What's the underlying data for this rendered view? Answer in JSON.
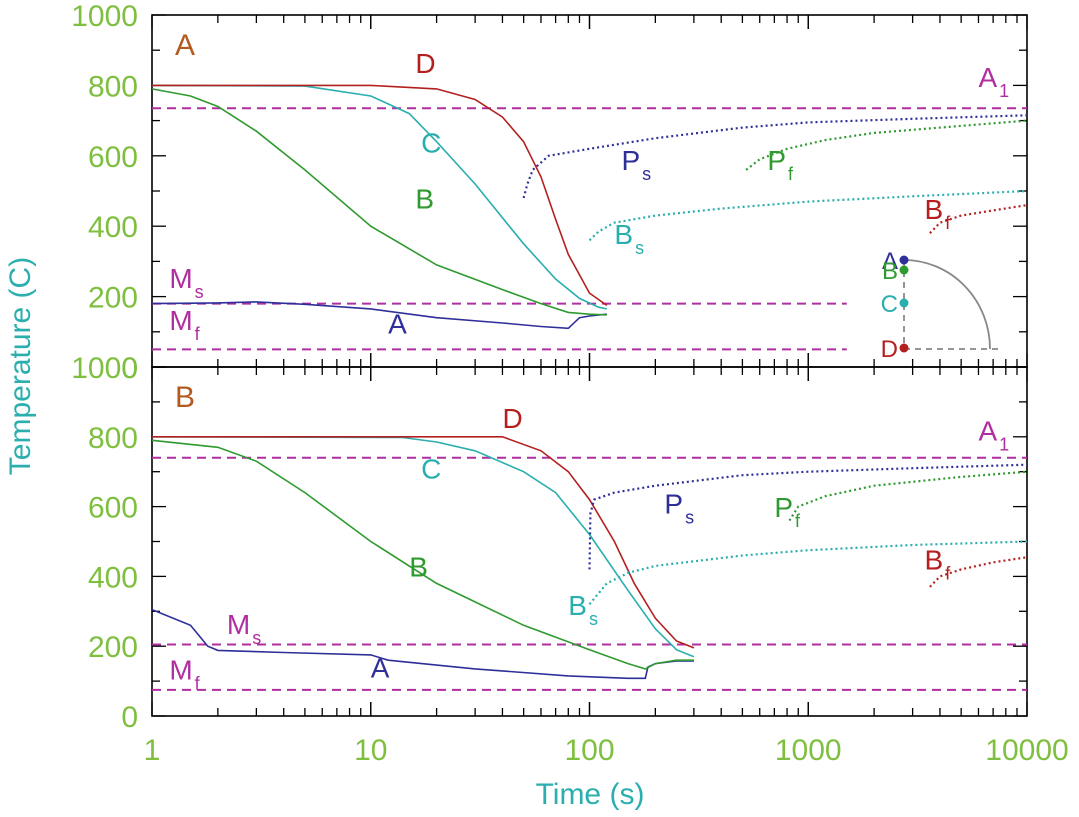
{
  "chart_data": [
    {
      "type": "line",
      "panel_label": "A",
      "xscale": "log",
      "xlim": [
        1,
        10000
      ],
      "ylim": [
        0,
        1000
      ],
      "xticks": [
        "1",
        "10",
        "100",
        "1000",
        "10000"
      ],
      "yticks": [
        "0",
        "200",
        "400",
        "600",
        "800",
        "1000"
      ],
      "xlabel": "Time (s)",
      "ylabel": "Temperature (C)",
      "colors": {
        "A": "#2f2f9a",
        "B": "#2f9a2f",
        "C": "#2aaeae",
        "D": "#b42020",
        "ref": "#b02ea0",
        "panel": "#b25a20",
        "axis_text": "#7fbf3f",
        "title_text": "#2aaeae"
      },
      "series": [
        {
          "name": "A",
          "x": [
            1,
            2,
            3,
            5,
            10,
            20,
            40,
            60,
            80,
            90,
            100,
            120
          ],
          "y": [
            180,
            182,
            185,
            178,
            165,
            140,
            125,
            115,
            110,
            140,
            145,
            150
          ]
        },
        {
          "name": "B",
          "x": [
            1,
            1.5,
            2,
            3,
            5,
            10,
            20,
            40,
            60,
            80,
            100,
            120
          ],
          "y": [
            790,
            770,
            740,
            670,
            560,
            400,
            290,
            220,
            180,
            155,
            150,
            148
          ]
        },
        {
          "name": "C",
          "x": [
            1,
            5,
            10,
            15,
            20,
            30,
            50,
            70,
            90,
            110,
            120
          ],
          "y": [
            800,
            798,
            770,
            720,
            640,
            520,
            350,
            250,
            195,
            170,
            165
          ]
        },
        {
          "name": "D",
          "x": [
            1,
            10,
            20,
            30,
            40,
            50,
            60,
            70,
            80,
            100,
            120
          ],
          "y": [
            800,
            800,
            790,
            760,
            710,
            640,
            540,
            420,
            320,
            210,
            175
          ]
        },
        {
          "name": "Ps",
          "x": [
            50,
            52,
            55,
            65,
            100,
            200,
            500,
            1000,
            3000,
            10000
          ],
          "y": [
            480,
            520,
            560,
            600,
            620,
            650,
            680,
            695,
            705,
            715
          ]
        },
        {
          "name": "Pf",
          "x": [
            520,
            600,
            800,
            1200,
            2000,
            5000,
            10000
          ],
          "y": [
            560,
            590,
            620,
            645,
            665,
            685,
            700
          ]
        },
        {
          "name": "Bs",
          "x": [
            100,
            110,
            130,
            200,
            400,
            1000,
            3000,
            10000
          ],
          "y": [
            360,
            385,
            410,
            430,
            450,
            470,
            485,
            500
          ]
        },
        {
          "name": "Bf",
          "x": [
            3600,
            4000,
            5000,
            7000,
            10000
          ],
          "y": [
            380,
            410,
            430,
            445,
            460
          ]
        }
      ],
      "reference_lines": [
        {
          "name": "A1",
          "y": 735,
          "x_end": 10000
        },
        {
          "name": "Ms",
          "y": 180,
          "x_end": 1500
        },
        {
          "name": "Mf",
          "y": 50,
          "x_end": 1500
        }
      ],
      "curve_labels": [
        {
          "text": "A",
          "x": 12,
          "y": 95,
          "color": "A"
        },
        {
          "text": "B",
          "x": 16,
          "y": 450,
          "color": "B"
        },
        {
          "text": "C",
          "x": 17,
          "y": 610,
          "color": "C"
        },
        {
          "text": "D",
          "x": 16,
          "y": 835,
          "color": "D"
        },
        {
          "text": "P",
          "sub": "s",
          "x": 140,
          "y": 560,
          "color": "A"
        },
        {
          "text": "P",
          "sub": "f",
          "x": 650,
          "y": 560,
          "color": "B"
        },
        {
          "text": "B",
          "sub": "s",
          "x": 130,
          "y": 350,
          "color": "C"
        },
        {
          "text": "B",
          "sub": "f",
          "x": 3400,
          "y": 420,
          "color": "D"
        },
        {
          "text": "M",
          "sub": "s",
          "x": 1.2,
          "y": 225,
          "color": "ref"
        },
        {
          "text": "M",
          "sub": "f",
          "x": 1.2,
          "y": 105,
          "color": "ref"
        },
        {
          "text": "A",
          "sub": "1",
          "x": 6000,
          "y": 795,
          "color": "ref"
        }
      ],
      "inset": {
        "labels": [
          "A",
          "B",
          "C",
          "D"
        ]
      }
    },
    {
      "type": "line",
      "panel_label": "B",
      "xscale": "log",
      "xlim": [
        1,
        10000
      ],
      "ylim": [
        0,
        1000
      ],
      "xticks": [
        "1",
        "10",
        "100",
        "1000",
        "10000"
      ],
      "yticks": [
        "0",
        "200",
        "400",
        "600",
        "800",
        "1000"
      ],
      "series": [
        {
          "name": "A",
          "x": [
            1,
            1.5,
            1.8,
            2,
            4,
            10,
            12,
            30,
            80,
            150,
            180,
            185,
            200,
            250,
            300
          ],
          "y": [
            305,
            260,
            200,
            188,
            182,
            175,
            160,
            135,
            115,
            108,
            108,
            140,
            150,
            158,
            158
          ]
        },
        {
          "name": "B",
          "x": [
            1,
            2,
            3,
            5,
            10,
            20,
            50,
            100,
            150,
            180,
            200,
            250,
            300
          ],
          "y": [
            790,
            770,
            730,
            640,
            500,
            380,
            260,
            190,
            150,
            135,
            150,
            160,
            160
          ]
        },
        {
          "name": "C",
          "x": [
            1,
            14,
            20,
            30,
            50,
            70,
            100,
            150,
            200,
            250,
            300
          ],
          "y": [
            800,
            798,
            785,
            760,
            700,
            640,
            520,
            360,
            250,
            190,
            170
          ]
        },
        {
          "name": "D",
          "x": [
            1,
            40,
            60,
            80,
            100,
            130,
            160,
            200,
            250,
            300
          ],
          "y": [
            800,
            800,
            760,
            700,
            620,
            500,
            380,
            280,
            215,
            195
          ]
        },
        {
          "name": "Ps",
          "x": [
            100,
            101,
            105,
            130,
            200,
            500,
            1000,
            3000,
            10000
          ],
          "y": [
            420,
            580,
            620,
            640,
            660,
            690,
            700,
            710,
            720
          ]
        },
        {
          "name": "Pf",
          "x": [
            820,
            900,
            1200,
            2000,
            5000,
            10000
          ],
          "y": [
            560,
            600,
            630,
            660,
            685,
            700
          ]
        },
        {
          "name": "Bs",
          "x": [
            100,
            120,
            150,
            200,
            500,
            1000,
            3000,
            10000
          ],
          "y": [
            320,
            380,
            410,
            430,
            460,
            475,
            490,
            500
          ]
        },
        {
          "name": "Bf",
          "x": [
            3600,
            4000,
            5000,
            7000,
            10000
          ],
          "y": [
            370,
            400,
            420,
            440,
            455
          ]
        }
      ],
      "reference_lines": [
        {
          "name": "A1",
          "y": 740,
          "x_end": 10000
        },
        {
          "name": "Ms",
          "y": 205,
          "x_end": 10000
        },
        {
          "name": "Mf",
          "y": 75,
          "x_end": 10000
        }
      ],
      "curve_labels": [
        {
          "text": "A",
          "x": 10,
          "y": 110,
          "color": "A"
        },
        {
          "text": "B",
          "x": 15,
          "y": 400,
          "color": "B"
        },
        {
          "text": "C",
          "x": 17,
          "y": 680,
          "color": "C"
        },
        {
          "text": "D",
          "x": 40,
          "y": 825,
          "color": "D"
        },
        {
          "text": "P",
          "sub": "s",
          "x": 220,
          "y": 580,
          "color": "A"
        },
        {
          "text": "P",
          "sub": "f",
          "x": 700,
          "y": 570,
          "color": "B"
        },
        {
          "text": "B",
          "sub": "s",
          "x": 80,
          "y": 290,
          "color": "C"
        },
        {
          "text": "B",
          "sub": "f",
          "x": 3400,
          "y": 420,
          "color": "D"
        },
        {
          "text": "M",
          "sub": "s",
          "x": 2.2,
          "y": 235,
          "color": "ref"
        },
        {
          "text": "M",
          "sub": "f",
          "x": 1.2,
          "y": 105,
          "color": "ref"
        },
        {
          "text": "A",
          "sub": "1",
          "x": 6000,
          "y": 790,
          "color": "ref"
        }
      ]
    }
  ]
}
